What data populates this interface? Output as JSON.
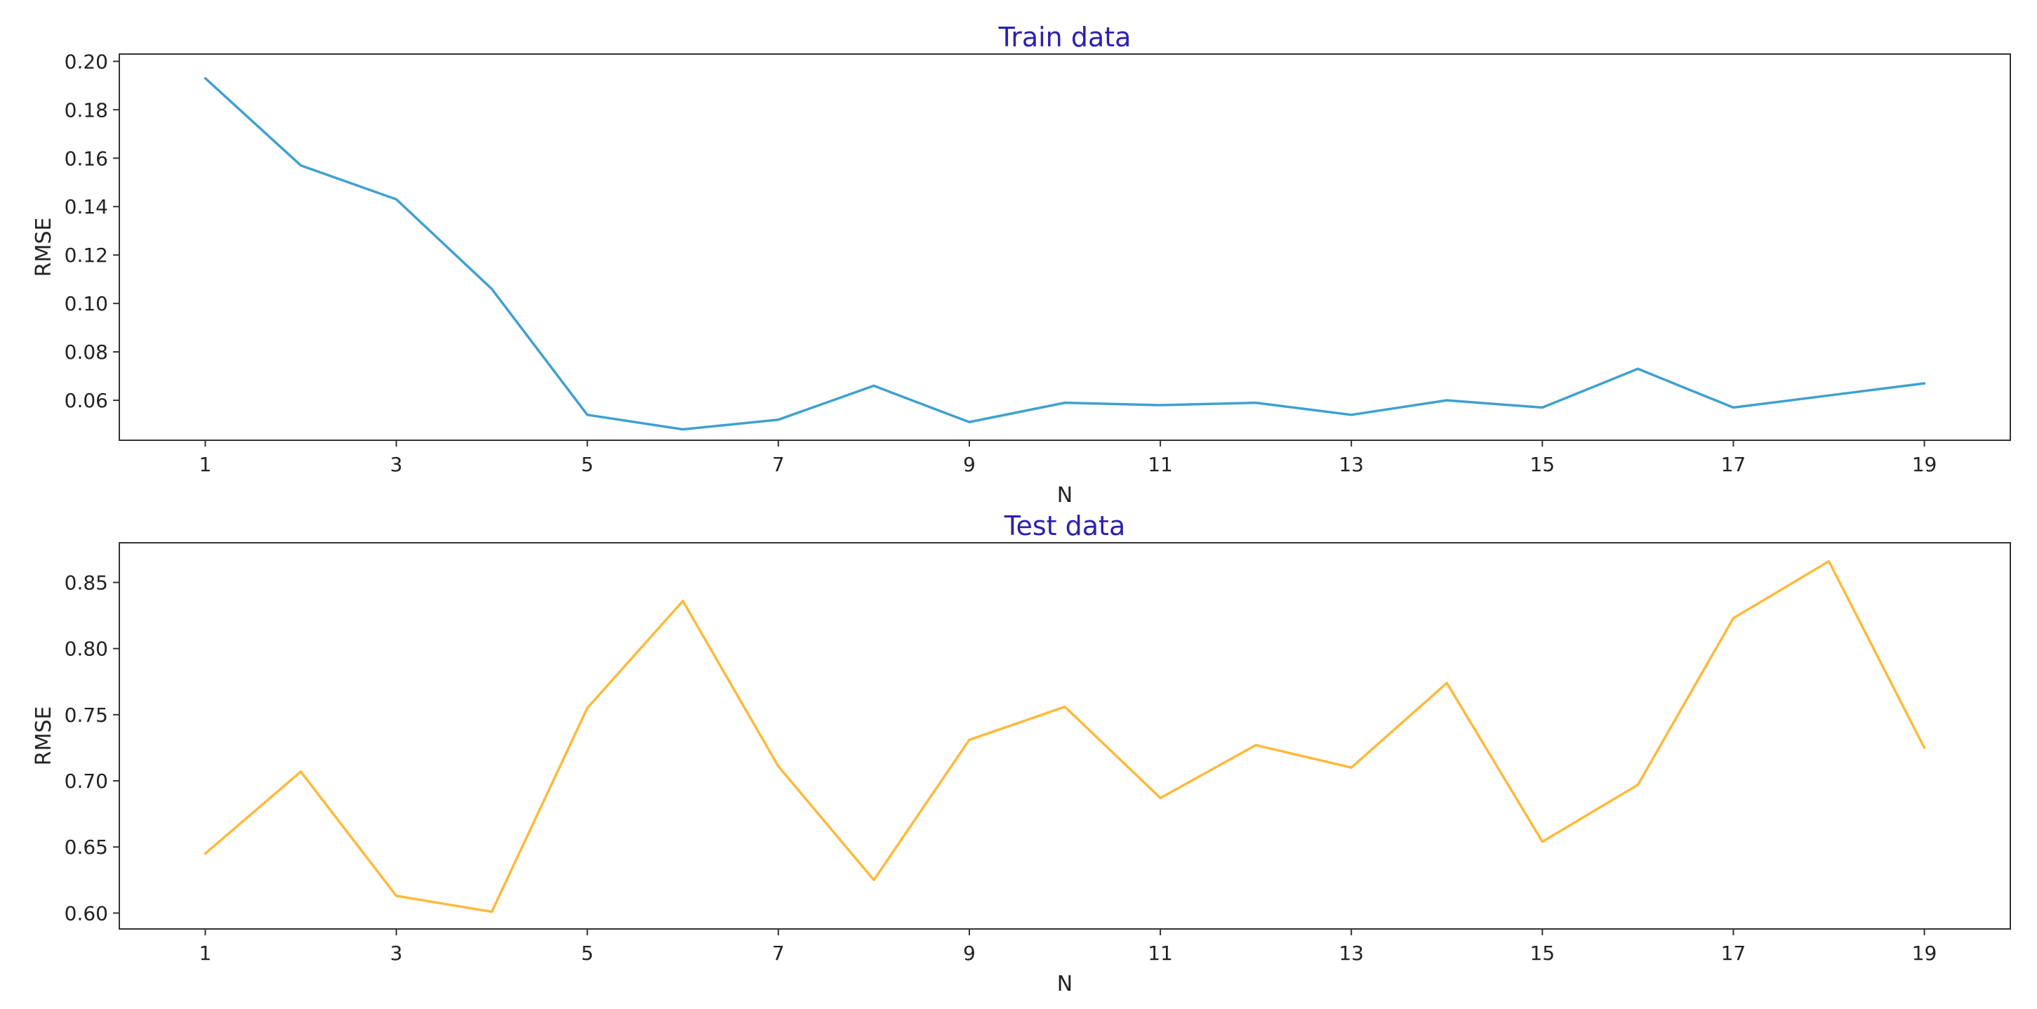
{
  "chart_data": [
    {
      "type": "line",
      "title": "Train data",
      "xlabel": "N",
      "ylabel": "RMSE",
      "x": [
        1,
        2,
        3,
        4,
        5,
        6,
        7,
        8,
        9,
        10,
        11,
        12,
        13,
        14,
        15,
        16,
        17,
        18,
        19
      ],
      "series": [
        {
          "color": "#3fa0d0",
          "values": [
            0.193,
            0.157,
            0.143,
            0.106,
            0.054,
            0.048,
            0.052,
            0.066,
            0.051,
            0.059,
            0.058,
            0.059,
            0.054,
            0.06,
            0.057,
            0.073,
            0.057,
            0.062,
            0.067
          ]
        }
      ],
      "xticks": [
        1,
        3,
        5,
        7,
        9,
        11,
        13,
        15,
        17,
        19
      ],
      "xtick_labels": [
        "1",
        "3",
        "5",
        "7",
        "9",
        "11",
        "13",
        "15",
        "17",
        "19"
      ],
      "yticks": [
        0.06,
        0.08,
        0.1,
        0.12,
        0.14,
        0.16,
        0.18,
        0.2
      ],
      "ytick_labels": [
        "0.06",
        "0.08",
        "0.10",
        "0.12",
        "0.14",
        "0.16",
        "0.18",
        "0.20"
      ],
      "xlim": [
        0.1,
        19.9
      ],
      "ylim": [
        0.0435,
        0.203
      ],
      "title_color": "#2b1fb0",
      "grid": false,
      "legend": "none"
    },
    {
      "type": "line",
      "title": "Test data",
      "xlabel": "N",
      "ylabel": "RMSE",
      "x": [
        1,
        2,
        3,
        4,
        5,
        6,
        7,
        8,
        9,
        10,
        11,
        12,
        13,
        14,
        15,
        16,
        17,
        18,
        19
      ],
      "series": [
        {
          "color": "#ffb93a",
          "values": [
            0.645,
            0.707,
            0.613,
            0.601,
            0.755,
            0.836,
            0.711,
            0.625,
            0.731,
            0.756,
            0.687,
            0.727,
            0.71,
            0.774,
            0.654,
            0.697,
            0.823,
            0.866,
            0.725
          ]
        }
      ],
      "xticks": [
        1,
        3,
        5,
        7,
        9,
        11,
        13,
        15,
        17,
        19
      ],
      "xtick_labels": [
        "1",
        "3",
        "5",
        "7",
        "9",
        "11",
        "13",
        "15",
        "17",
        "19"
      ],
      "yticks": [
        0.6,
        0.65,
        0.7,
        0.75,
        0.8,
        0.85
      ],
      "ytick_labels": [
        "0.60",
        "0.65",
        "0.70",
        "0.75",
        "0.80",
        "0.85"
      ],
      "xlim": [
        0.1,
        19.9
      ],
      "ylim": [
        0.588,
        0.88
      ],
      "title_color": "#2b1fb0",
      "grid": false,
      "legend": "none"
    }
  ]
}
